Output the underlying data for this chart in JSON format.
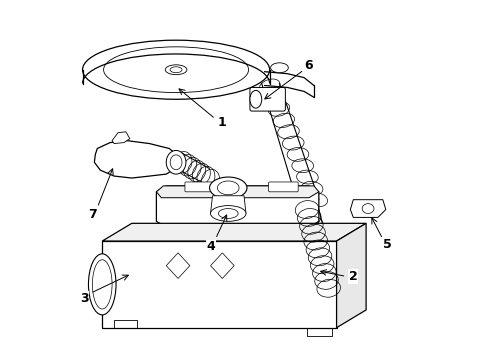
{
  "bg_color": "#ffffff",
  "line_color": "#000000",
  "label_color": "#000000",
  "labels": [
    "1",
    "2",
    "3",
    "4",
    "5",
    "6",
    "7"
  ]
}
